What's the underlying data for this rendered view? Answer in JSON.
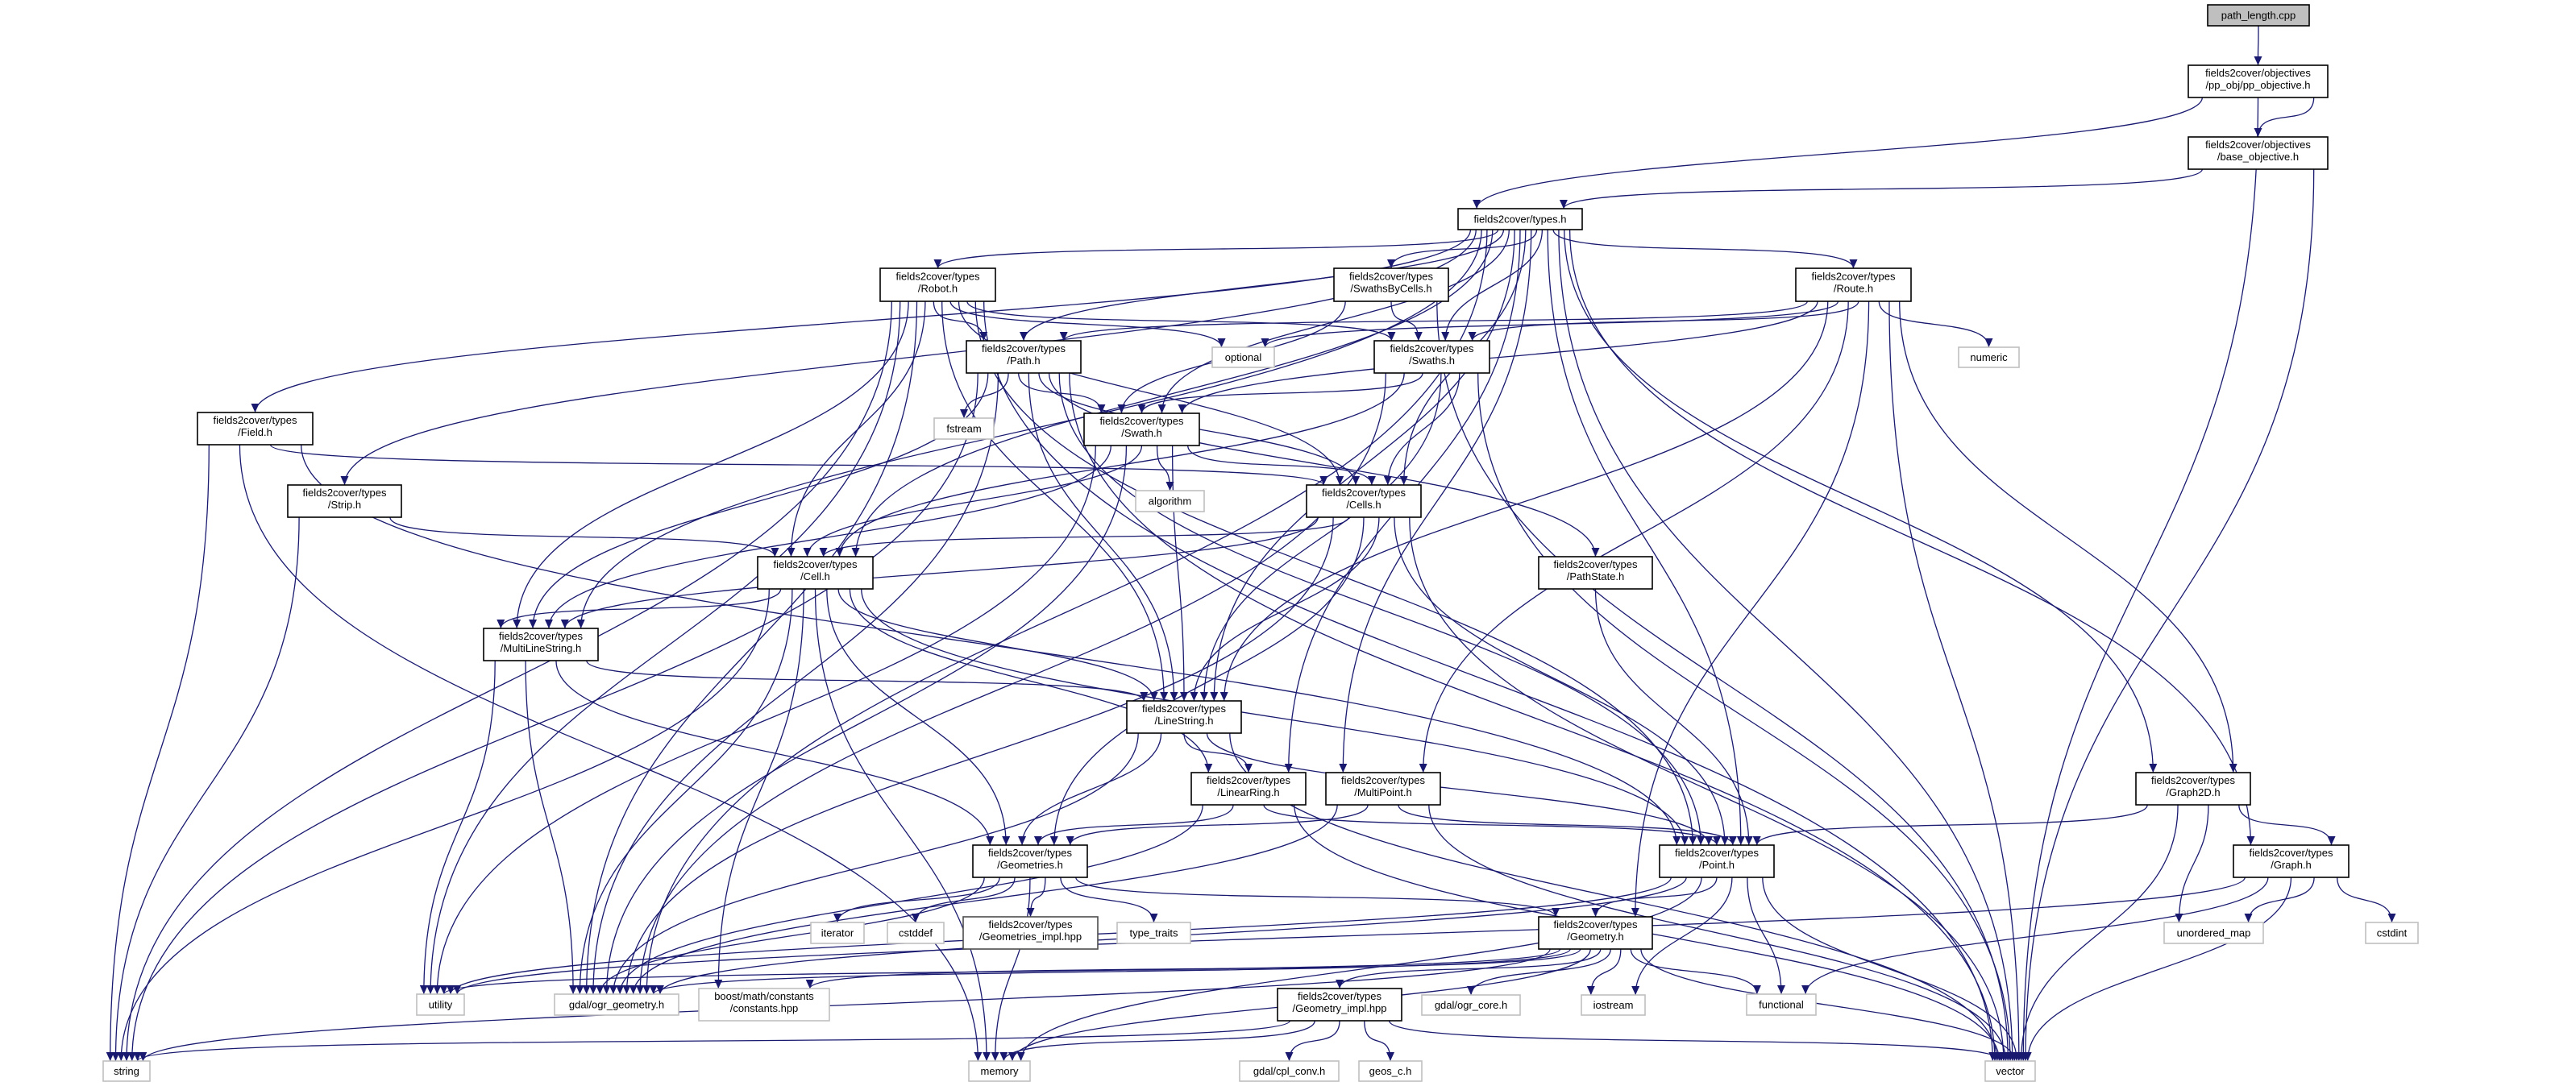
{
  "colors": {
    "edge": "#191970",
    "root_fill": "#bfbfbf",
    "documented_border": "#000000",
    "system_border": "#bfbfbf"
  },
  "nodes": [
    {
      "id": "pl",
      "lines": [
        "path_length.cpp"
      ],
      "kind": "root"
    },
    {
      "id": "ppo",
      "lines": [
        "fields2cover/objectives",
        "/pp_obj/pp_objective.h"
      ],
      "kind": "documented"
    },
    {
      "id": "bo",
      "lines": [
        "fields2cover/objectives",
        "/base_objective.h"
      ],
      "kind": "documented"
    },
    {
      "id": "types",
      "lines": [
        "fields2cover/types.h"
      ],
      "kind": "documented"
    },
    {
      "id": "robot",
      "lines": [
        "fields2cover/types",
        "/Robot.h"
      ],
      "kind": "documented"
    },
    {
      "id": "sbc",
      "lines": [
        "fields2cover/types",
        "/SwathsByCells.h"
      ],
      "kind": "documented"
    },
    {
      "id": "route",
      "lines": [
        "fields2cover/types",
        "/Route.h"
      ],
      "kind": "documented"
    },
    {
      "id": "optional",
      "lines": [
        "optional"
      ],
      "kind": "system"
    },
    {
      "id": "numeric",
      "lines": [
        "numeric"
      ],
      "kind": "system"
    },
    {
      "id": "path",
      "lines": [
        "fields2cover/types",
        "/Path.h"
      ],
      "kind": "documented"
    },
    {
      "id": "swaths",
      "lines": [
        "fields2cover/types",
        "/Swaths.h"
      ],
      "kind": "documented"
    },
    {
      "id": "fstream",
      "lines": [
        "fstream"
      ],
      "kind": "system"
    },
    {
      "id": "field",
      "lines": [
        "fields2cover/types",
        "/Field.h"
      ],
      "kind": "documented"
    },
    {
      "id": "swath",
      "lines": [
        "fields2cover/types",
        "/Swath.h"
      ],
      "kind": "documented"
    },
    {
      "id": "algorithm",
      "lines": [
        "algorithm"
      ],
      "kind": "system"
    },
    {
      "id": "cells",
      "lines": [
        "fields2cover/types",
        "/Cells.h"
      ],
      "kind": "documented"
    },
    {
      "id": "strip",
      "lines": [
        "fields2cover/types",
        "/Strip.h"
      ],
      "kind": "documented"
    },
    {
      "id": "cell",
      "lines": [
        "fields2cover/types",
        "/Cell.h"
      ],
      "kind": "documented"
    },
    {
      "id": "pathstate",
      "lines": [
        "fields2cover/types",
        "/PathState.h"
      ],
      "kind": "documented"
    },
    {
      "id": "mls",
      "lines": [
        "fields2cover/types",
        "/MultiLineString.h"
      ],
      "kind": "documented"
    },
    {
      "id": "ls",
      "lines": [
        "fields2cover/types",
        "/LineString.h"
      ],
      "kind": "documented"
    },
    {
      "id": "lr",
      "lines": [
        "fields2cover/types",
        "/LinearRing.h"
      ],
      "kind": "documented"
    },
    {
      "id": "mp",
      "lines": [
        "fields2cover/types",
        "/MultiPoint.h"
      ],
      "kind": "documented"
    },
    {
      "id": "graph2d",
      "lines": [
        "fields2cover/types",
        "/Graph2D.h"
      ],
      "kind": "documented"
    },
    {
      "id": "geoms",
      "lines": [
        "fields2cover/types",
        "/Geometries.h"
      ],
      "kind": "documented"
    },
    {
      "id": "point",
      "lines": [
        "fields2cover/types",
        "/Point.h"
      ],
      "kind": "documented"
    },
    {
      "id": "graph",
      "lines": [
        "fields2cover/types",
        "/Graph.h"
      ],
      "kind": "documented"
    },
    {
      "id": "iterator",
      "lines": [
        "iterator"
      ],
      "kind": "system"
    },
    {
      "id": "cstddef",
      "lines": [
        "cstddef"
      ],
      "kind": "system"
    },
    {
      "id": "geomsimpl",
      "lines": [
        "fields2cover/types",
        "/Geometries_impl.hpp"
      ],
      "kind": "undocumented"
    },
    {
      "id": "typetraits",
      "lines": [
        "type_traits"
      ],
      "kind": "system"
    },
    {
      "id": "geometry",
      "lines": [
        "fields2cover/types",
        "/Geometry.h"
      ],
      "kind": "documented"
    },
    {
      "id": "umap",
      "lines": [
        "unordered_map"
      ],
      "kind": "system"
    },
    {
      "id": "cstdint",
      "lines": [
        "cstdint"
      ],
      "kind": "system"
    },
    {
      "id": "utility",
      "lines": [
        "utility"
      ],
      "kind": "system"
    },
    {
      "id": "ogrgeom",
      "lines": [
        "gdal/ogr_geometry.h"
      ],
      "kind": "system"
    },
    {
      "id": "boost",
      "lines": [
        "boost/math/constants",
        "/constants.hpp"
      ],
      "kind": "system"
    },
    {
      "id": "geomimpl",
      "lines": [
        "fields2cover/types",
        "/Geometry_impl.hpp"
      ],
      "kind": "documented"
    },
    {
      "id": "ogrcore",
      "lines": [
        "gdal/ogr_core.h"
      ],
      "kind": "system"
    },
    {
      "id": "iostream",
      "lines": [
        "iostream"
      ],
      "kind": "system"
    },
    {
      "id": "functional",
      "lines": [
        "functional"
      ],
      "kind": "system"
    },
    {
      "id": "string",
      "lines": [
        "string"
      ],
      "kind": "system"
    },
    {
      "id": "memory",
      "lines": [
        "memory"
      ],
      "kind": "system"
    },
    {
      "id": "cplconv",
      "lines": [
        "gdal/cpl_conv.h"
      ],
      "kind": "system"
    },
    {
      "id": "geosc",
      "lines": [
        "geos_c.h"
      ],
      "kind": "system"
    },
    {
      "id": "vector",
      "lines": [
        "vector"
      ],
      "kind": "system"
    }
  ],
  "edges": [
    [
      "pl",
      "ppo"
    ],
    [
      "ppo",
      "bo"
    ],
    [
      "ppo",
      "types"
    ],
    [
      "ppo",
      "vector"
    ],
    [
      "bo",
      "types"
    ],
    [
      "bo",
      "vector"
    ],
    [
      "types",
      "robot"
    ],
    [
      "types",
      "sbc"
    ],
    [
      "types",
      "route"
    ],
    [
      "types",
      "field"
    ],
    [
      "types",
      "strip"
    ],
    [
      "types",
      "path"
    ],
    [
      "types",
      "swaths"
    ],
    [
      "types",
      "swath"
    ],
    [
      "types",
      "cells"
    ],
    [
      "types",
      "cell"
    ],
    [
      "types",
      "mls"
    ],
    [
      "types",
      "ls"
    ],
    [
      "types",
      "lr"
    ],
    [
      "types",
      "mp"
    ],
    [
      "types",
      "point"
    ],
    [
      "types",
      "graph2d"
    ],
    [
      "types",
      "graph"
    ],
    [
      "types",
      "ogrgeom"
    ],
    [
      "types",
      "vector"
    ],
    [
      "robot",
      "path"
    ],
    [
      "robot",
      "optional"
    ],
    [
      "robot",
      "string"
    ],
    [
      "robot",
      "utility"
    ],
    [
      "robot",
      "cell"
    ],
    [
      "robot",
      "cells"
    ],
    [
      "robot",
      "point"
    ],
    [
      "robot",
      "ls"
    ],
    [
      "robot",
      "mls"
    ],
    [
      "robot",
      "ogrgeom"
    ],
    [
      "robot",
      "vector"
    ],
    [
      "robot",
      "swaths"
    ],
    [
      "sbc",
      "swaths"
    ],
    [
      "sbc",
      "swath"
    ],
    [
      "sbc",
      "vector"
    ],
    [
      "route",
      "path"
    ],
    [
      "route",
      "swaths"
    ],
    [
      "route",
      "swath"
    ],
    [
      "route",
      "ls"
    ],
    [
      "route",
      "mp"
    ],
    [
      "route",
      "optional"
    ],
    [
      "route",
      "numeric"
    ],
    [
      "route",
      "graph2d"
    ],
    [
      "route",
      "vector"
    ],
    [
      "route",
      "geometry"
    ],
    [
      "path",
      "fstream"
    ],
    [
      "path",
      "swath"
    ],
    [
      "path",
      "string"
    ],
    [
      "path",
      "pathstate"
    ],
    [
      "path",
      "cells"
    ],
    [
      "path",
      "ls"
    ],
    [
      "path",
      "mls"
    ],
    [
      "path",
      "ogrgeom"
    ],
    [
      "path",
      "point"
    ],
    [
      "path",
      "vector"
    ],
    [
      "swaths",
      "swath"
    ],
    [
      "swaths",
      "cells"
    ],
    [
      "swaths",
      "ls"
    ],
    [
      "swaths",
      "cell"
    ],
    [
      "swaths",
      "ogrgeom"
    ],
    [
      "swaths",
      "vector"
    ],
    [
      "field",
      "cells"
    ],
    [
      "field",
      "string"
    ],
    [
      "field",
      "memory"
    ],
    [
      "field",
      "point"
    ],
    [
      "swath",
      "algorithm"
    ],
    [
      "swath",
      "cells"
    ],
    [
      "swath",
      "ls"
    ],
    [
      "swath",
      "cell"
    ],
    [
      "swath",
      "mls"
    ],
    [
      "swath",
      "ogrgeom"
    ],
    [
      "swath",
      "utility"
    ],
    [
      "cells",
      "cell"
    ],
    [
      "cells",
      "ls"
    ],
    [
      "cells",
      "point"
    ],
    [
      "cells",
      "geoms"
    ],
    [
      "cells",
      "ogrgeom"
    ],
    [
      "cells",
      "vector"
    ],
    [
      "cells",
      "mls"
    ],
    [
      "strip",
      "cell"
    ],
    [
      "strip",
      "string"
    ],
    [
      "cell",
      "mls"
    ],
    [
      "cell",
      "ls"
    ],
    [
      "cell",
      "lr"
    ],
    [
      "cell",
      "point"
    ],
    [
      "cell",
      "geoms"
    ],
    [
      "cell",
      "ogrgeom"
    ],
    [
      "cell",
      "boost"
    ],
    [
      "cell",
      "string"
    ],
    [
      "cell",
      "memory"
    ],
    [
      "pathstate",
      "point"
    ],
    [
      "mls",
      "ls"
    ],
    [
      "mls",
      "geoms"
    ],
    [
      "mls",
      "utility"
    ],
    [
      "mls",
      "ogrgeom"
    ],
    [
      "ls",
      "lr"
    ],
    [
      "ls",
      "geoms"
    ],
    [
      "ls",
      "point"
    ],
    [
      "ls",
      "ogrgeom"
    ],
    [
      "ls",
      "vector"
    ],
    [
      "lr",
      "geoms"
    ],
    [
      "lr",
      "point"
    ],
    [
      "lr",
      "ogrgeom"
    ],
    [
      "lr",
      "vector"
    ],
    [
      "mp",
      "geoms"
    ],
    [
      "mp",
      "point"
    ],
    [
      "mp",
      "ogrgeom"
    ],
    [
      "mp",
      "vector"
    ],
    [
      "graph2d",
      "point"
    ],
    [
      "graph2d",
      "graph"
    ],
    [
      "graph2d",
      "umap"
    ],
    [
      "graph2d",
      "vector"
    ],
    [
      "geoms",
      "iterator"
    ],
    [
      "geoms",
      "cstddef"
    ],
    [
      "geoms",
      "geomsimpl"
    ],
    [
      "geoms",
      "typetraits"
    ],
    [
      "geoms",
      "geometry"
    ],
    [
      "geoms",
      "ogrgeom"
    ],
    [
      "geoms",
      "memory"
    ],
    [
      "point",
      "geometry"
    ],
    [
      "point",
      "iostream"
    ],
    [
      "point",
      "functional"
    ],
    [
      "point",
      "vector"
    ],
    [
      "point",
      "ogrgeom"
    ],
    [
      "point",
      "utility"
    ],
    [
      "point",
      "memory"
    ],
    [
      "graph",
      "umap"
    ],
    [
      "graph",
      "cstdint"
    ],
    [
      "graph",
      "functional"
    ],
    [
      "graph",
      "vector"
    ],
    [
      "graph",
      "utility"
    ],
    [
      "geometry",
      "geomimpl"
    ],
    [
      "geometry",
      "ogrcore"
    ],
    [
      "geometry",
      "iostream"
    ],
    [
      "geometry",
      "functional"
    ],
    [
      "geometry",
      "vector"
    ],
    [
      "geometry",
      "ogrgeom"
    ],
    [
      "geometry",
      "boost"
    ],
    [
      "geometry",
      "utility"
    ],
    [
      "geometry",
      "string"
    ],
    [
      "geometry",
      "memory"
    ],
    [
      "geomimpl",
      "cplconv"
    ],
    [
      "geomimpl",
      "geosc"
    ],
    [
      "geomimpl",
      "memory"
    ],
    [
      "geomimpl",
      "string"
    ],
    [
      "geomimpl",
      "vector"
    ]
  ]
}
